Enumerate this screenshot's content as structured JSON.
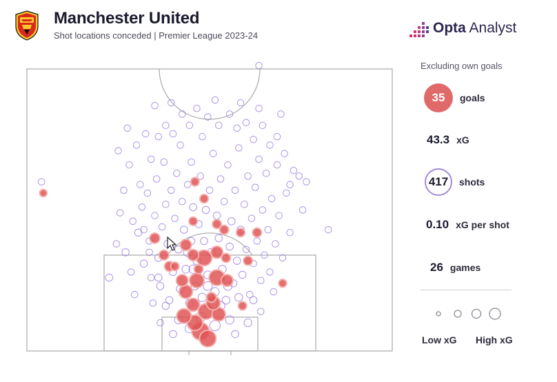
{
  "header": {
    "title": "Manchester United",
    "subtitle": "Shot locations conceded | Premier League 2023-24",
    "brand_bold": "Opta",
    "brand_light": "Analyst",
    "crest": "manchester-united-crest"
  },
  "sidebar": {
    "note": "Excluding own goals",
    "goals": {
      "value": "35",
      "label": "goals"
    },
    "xg": {
      "value": "43.3",
      "label": "xG"
    },
    "shots": {
      "value": "417",
      "label": "shots"
    },
    "xg_per_shot": {
      "value": "0.10",
      "label": "xG per shot"
    },
    "games": {
      "value": "26",
      "label": "games"
    },
    "legend_low": "Low xG",
    "legend_high": "High xG"
  },
  "colors": {
    "goal_fill": "#e05555",
    "shot_stroke": "#9d7ee0",
    "pitch_line": "#a8a8a8",
    "brand_pink": "#d6336c"
  },
  "icons": {
    "cursor": "mouse-pointer-icon"
  },
  "chart_data": {
    "type": "scatter",
    "title": "Shot locations conceded",
    "x_axis": "pitch width (0 = left touchline, 100 = right touchline)",
    "y_axis": "distance from goal line (pitch percent)",
    "xlim": [
      0,
      100
    ],
    "ylim": [
      0,
      50
    ],
    "size_encoding": "xG",
    "series": [
      {
        "name": "goals",
        "points": [
          [
            47.5,
            3.5,
            0.4
          ],
          [
            49.5,
            2.2,
            0.35
          ],
          [
            46,
            5,
            0.3
          ],
          [
            43,
            6.2,
            0.25
          ],
          [
            49,
            7,
            0.3
          ],
          [
            52.5,
            6.5,
            0.2
          ],
          [
            51,
            8.5,
            0.22
          ],
          [
            45.5,
            8.2,
            0.18
          ],
          [
            43.5,
            10.5,
            0.2
          ],
          [
            46.5,
            12.5,
            0.25
          ],
          [
            52,
            13,
            0.3
          ],
          [
            54.8,
            12.5,
            0.14
          ],
          [
            42.5,
            12.5,
            0.14
          ],
          [
            48.5,
            16.5,
            0.3
          ],
          [
            45.5,
            17,
            0.12
          ],
          [
            43.5,
            18.8,
            0.12
          ],
          [
            52,
            17.5,
            0.15
          ],
          [
            39,
            15,
            0.08
          ],
          [
            37.5,
            17,
            0.08
          ],
          [
            35,
            20,
            0.09
          ],
          [
            52,
            22.5,
            0.06
          ],
          [
            54,
            21.5,
            0.06
          ],
          [
            60.5,
            16,
            0.06
          ],
          [
            63,
            21,
            0.06
          ],
          [
            70,
            12,
            0.04
          ],
          [
            59,
            8,
            0.05
          ],
          [
            46,
            30,
            0.05
          ],
          [
            48.5,
            27,
            0.05
          ],
          [
            45.5,
            23,
            0.05
          ],
          [
            58.5,
            21,
            0.05
          ],
          [
            4.5,
            28,
            0.03
          ],
          [
            40.5,
            15,
            0.05
          ],
          [
            47,
            14.5,
            0.06
          ],
          [
            54.5,
            16.5,
            0.06
          ],
          [
            50.5,
            9.5,
            0.08
          ]
        ]
      },
      {
        "name": "shots",
        "points": [
          [
            63.5,
            50.6,
            0.02
          ],
          [
            4,
            30,
            0.02
          ],
          [
            82.5,
            21.5,
            0.02
          ],
          [
            22.5,
            13,
            0.03
          ],
          [
            25.5,
            24.5,
            0.02
          ],
          [
            24.5,
            19,
            0.02
          ],
          [
            27,
            17.5,
            0.03
          ],
          [
            28.5,
            14,
            0.02
          ],
          [
            29.5,
            10,
            0.02
          ],
          [
            30.5,
            21,
            0.03
          ],
          [
            31.5,
            25.5,
            0.02
          ],
          [
            32,
            15.5,
            0.03
          ],
          [
            33,
            28,
            0.02
          ],
          [
            33.5,
            19.5,
            0.02
          ],
          [
            34,
            13,
            0.02
          ],
          [
            34.5,
            8.5,
            0.02
          ],
          [
            35,
            24,
            0.02
          ],
          [
            35.5,
            30.5,
            0.02
          ],
          [
            36,
            16.5,
            0.03
          ],
          [
            36.5,
            11.5,
            0.03
          ],
          [
            37,
            22,
            0.02
          ],
          [
            37.5,
            33.5,
            0.02
          ],
          [
            38,
            26,
            0.02
          ],
          [
            38.5,
            19,
            0.03
          ],
          [
            39,
            9,
            0.03
          ],
          [
            39.5,
            28.5,
            0.02
          ],
          [
            40,
            14,
            0.03
          ],
          [
            40.5,
            23.5,
            0.02
          ],
          [
            41,
            31.5,
            0.02
          ],
          [
            41.5,
            18,
            0.03
          ],
          [
            42,
            11,
            0.04
          ],
          [
            42,
            36.5,
            0.02
          ],
          [
            42.5,
            26.5,
            0.02
          ],
          [
            43,
            21.5,
            0.03
          ],
          [
            43.5,
            14.5,
            0.04
          ],
          [
            44,
            29.5,
            0.02
          ],
          [
            44.5,
            8.5,
            0.04
          ],
          [
            45,
            19.5,
            0.03
          ],
          [
            45,
            33.5,
            0.02
          ],
          [
            45.5,
            25.5,
            0.03
          ],
          [
            46,
            11.5,
            0.04
          ],
          [
            46.5,
            16,
            0.04
          ],
          [
            47,
            22.5,
            0.03
          ],
          [
            47.5,
            31,
            0.02
          ],
          [
            48,
            9.5,
            0.05
          ],
          [
            48,
            38,
            0.02
          ],
          [
            48.5,
            19.5,
            0.03
          ],
          [
            49,
            25,
            0.03
          ],
          [
            49.5,
            13.5,
            0.04
          ],
          [
            50,
            28.5,
            0.02
          ],
          [
            50.5,
            17.5,
            0.04
          ],
          [
            51,
            35,
            0.02
          ],
          [
            51.5,
            10.5,
            0.05
          ],
          [
            52,
            24,
            0.03
          ],
          [
            52.5,
            20,
            0.03
          ],
          [
            53,
            30.5,
            0.02
          ],
          [
            53.5,
            14.5,
            0.04
          ],
          [
            54,
            26.5,
            0.02
          ],
          [
            54.5,
            9,
            0.04
          ],
          [
            55,
            33,
            0.02
          ],
          [
            55.5,
            18.5,
            0.03
          ],
          [
            56,
            23,
            0.03
          ],
          [
            56.5,
            12,
            0.03
          ],
          [
            57,
            28.5,
            0.02
          ],
          [
            57.5,
            16,
            0.03
          ],
          [
            58,
            36,
            0.02
          ],
          [
            58.5,
            21.5,
            0.03
          ],
          [
            59,
            13.5,
            0.03
          ],
          [
            59.5,
            26,
            0.02
          ],
          [
            60,
            18,
            0.02
          ],
          [
            60.5,
            31,
            0.02
          ],
          [
            61,
            10,
            0.02
          ],
          [
            61.5,
            23.5,
            0.02
          ],
          [
            62,
            15.5,
            0.02
          ],
          [
            62.5,
            29,
            0.02
          ],
          [
            63,
            19.5,
            0.02
          ],
          [
            63.5,
            34,
            0.02
          ],
          [
            64,
            12.5,
            0.02
          ],
          [
            64.5,
            25,
            0.02
          ],
          [
            65,
            17,
            0.02
          ],
          [
            65.5,
            31.5,
            0.02
          ],
          [
            66,
            21.5,
            0.02
          ],
          [
            66.5,
            14,
            0.02
          ],
          [
            67,
            27,
            0.02
          ],
          [
            67.5,
            10.5,
            0.02
          ],
          [
            68,
            19,
            0.02
          ],
          [
            68.5,
            33,
            0.02
          ],
          [
            69,
            24,
            0.02
          ],
          [
            70,
            16.5,
            0.02
          ],
          [
            71,
            28,
            0.02
          ],
          [
            72,
            21,
            0.02
          ],
          [
            73,
            32,
            0.02
          ],
          [
            26.5,
            28.5,
            0.02
          ],
          [
            28,
            33,
            0.02
          ],
          [
            29,
            23,
            0.02
          ],
          [
            30,
            36.5,
            0.02
          ],
          [
            31,
            29.5,
            0.02
          ],
          [
            32.5,
            38.5,
            0.02
          ],
          [
            34,
            34,
            0.02
          ],
          [
            36,
            38,
            0.02
          ],
          [
            38,
            40,
            0.02
          ],
          [
            40,
            38.5,
            0.02
          ],
          [
            42.5,
            42,
            0.02
          ],
          [
            44.5,
            40,
            0.02
          ],
          [
            46.5,
            43,
            0.02
          ],
          [
            49.5,
            41.5,
            0.02
          ],
          [
            52.5,
            40,
            0.02
          ],
          [
            55.5,
            42,
            0.02
          ],
          [
            57.5,
            39.5,
            0.02
          ],
          [
            60,
            40.5,
            0.02
          ],
          [
            62,
            37.5,
            0.02
          ],
          [
            64.5,
            40,
            0.02
          ],
          [
            66.5,
            36.5,
            0.02
          ],
          [
            68.5,
            38,
            0.02
          ],
          [
            70.5,
            35,
            0.02
          ],
          [
            72,
            29.5,
            0.02
          ],
          [
            74.5,
            31,
            0.02
          ],
          [
            75.5,
            25,
            0.02
          ],
          [
            76.5,
            30,
            0.02
          ],
          [
            25,
            35.5,
            0.02
          ],
          [
            27.5,
            39.5,
            0.02
          ],
          [
            35,
            43.5,
            0.02
          ],
          [
            39.5,
            44,
            0.02
          ],
          [
            51.5,
            44.5,
            0.02
          ],
          [
            58.5,
            44,
            0.02
          ],
          [
            63.5,
            43,
            0.02
          ],
          [
            69.5,
            42,
            0.02
          ],
          [
            44,
            17.5,
            0.05
          ],
          [
            47.5,
            6,
            0.08
          ],
          [
            51.5,
            4.5,
            0.1
          ],
          [
            44.5,
            4,
            0.06
          ],
          [
            55.5,
            5.5,
            0.05
          ],
          [
            41.5,
            5.5,
            0.04
          ],
          [
            53,
            8,
            0.06
          ],
          [
            49.5,
            11.5,
            0.06
          ],
          [
            45.5,
            14.5,
            0.05
          ],
          [
            55,
            11.5,
            0.05
          ],
          [
            58,
            9.5,
            0.04
          ],
          [
            38,
            8,
            0.03
          ],
          [
            36,
            13,
            0.03
          ],
          [
            33.5,
            17.5,
            0.02
          ],
          [
            32,
            21.5,
            0.02
          ],
          [
            60.5,
            5,
            0.04
          ],
          [
            62,
            9,
            0.03
          ],
          [
            40,
            3,
            0.03
          ],
          [
            57,
            3,
            0.03
          ],
          [
            36.5,
            5,
            0.02
          ],
          [
            64,
            7,
            0.02
          ]
        ]
      }
    ]
  }
}
